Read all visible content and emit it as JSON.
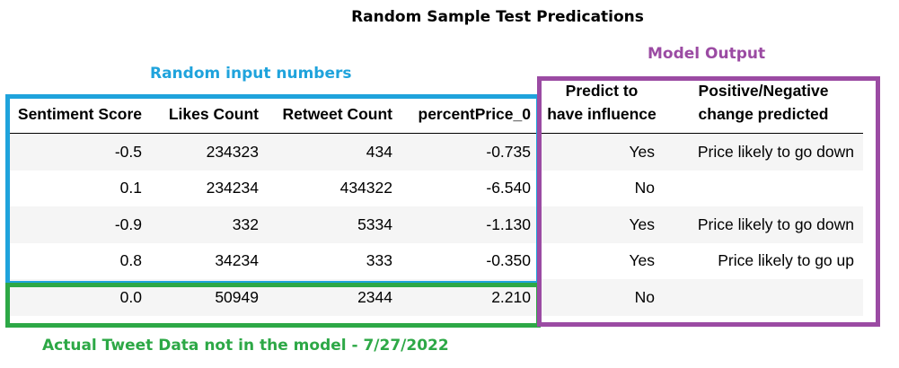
{
  "title": "Random Sample Test Predications",
  "annotations": {
    "input_label": "Random input numbers",
    "model_label": "Model Output",
    "actual_label": "Actual Tweet Data not in the model - 7/27/2022",
    "colors": {
      "input": "#1fa3dc",
      "model": "#9b4ba3",
      "actual": "#2da846"
    }
  },
  "table": {
    "headers": {
      "sentiment": "Sentiment Score",
      "likes": "Likes Count",
      "retweets": "Retweet Count",
      "percent": "percentPrice_0",
      "influence_line1": "Predict to",
      "influence_line2": "have influence",
      "change_line1": "Positive/Negative",
      "change_line2": "change predicted"
    },
    "rows": [
      {
        "sentiment": "-0.5",
        "likes": "234323",
        "retweets": "434",
        "percent": "-0.735",
        "influence": "Yes",
        "change": "Price likely to go down"
      },
      {
        "sentiment": "0.1",
        "likes": "234234",
        "retweets": "434322",
        "percent": "-6.540",
        "influence": "No",
        "change": ""
      },
      {
        "sentiment": "-0.9",
        "likes": "332",
        "retweets": "5334",
        "percent": "-1.130",
        "influence": "Yes",
        "change": "Price likely to go down"
      },
      {
        "sentiment": "0.8",
        "likes": "34234",
        "retweets": "333",
        "percent": "-0.350",
        "influence": "Yes",
        "change": "Price likely to go up"
      },
      {
        "sentiment": "0.0",
        "likes": "50949",
        "retweets": "2344",
        "percent": "2.210",
        "influence": "No",
        "change": ""
      }
    ]
  }
}
